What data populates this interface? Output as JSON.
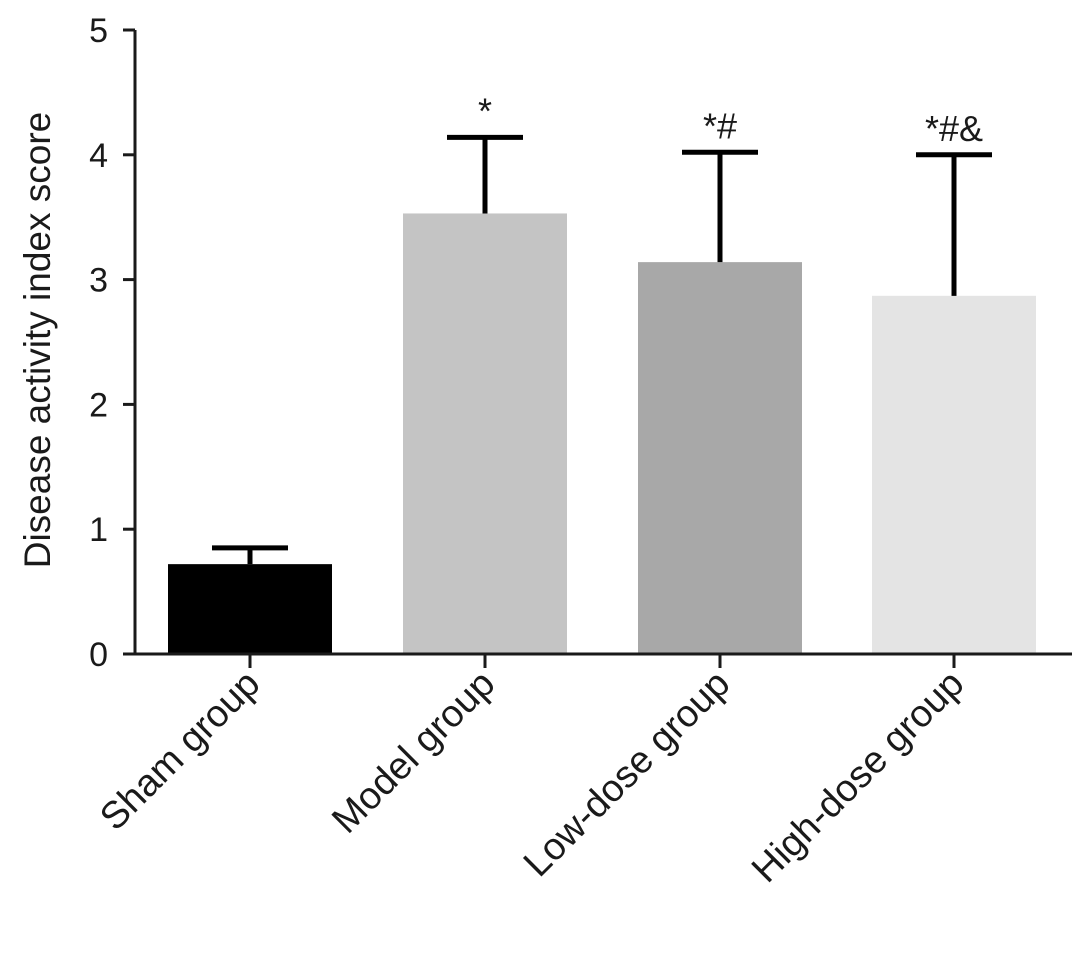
{
  "chart_data": {
    "type": "bar",
    "title": "",
    "xlabel": "",
    "ylabel": "Disease activity index score",
    "ylim": [
      0,
      5
    ],
    "yticks": [
      "0",
      "1",
      "2",
      "3",
      "4",
      "5"
    ],
    "grid": false,
    "categories": [
      "Sham group",
      "Model group",
      "Low-dose group",
      "High-dose group"
    ],
    "values": [
      0.72,
      3.53,
      3.14,
      2.87
    ],
    "errors": [
      0.13,
      0.61,
      0.88,
      1.13
    ],
    "annotations": [
      "",
      "*",
      "*#",
      "*#&"
    ],
    "colors": [
      "#000000",
      "#c4c4c4",
      "#a8a8a8",
      "#e4e4e4"
    ]
  }
}
